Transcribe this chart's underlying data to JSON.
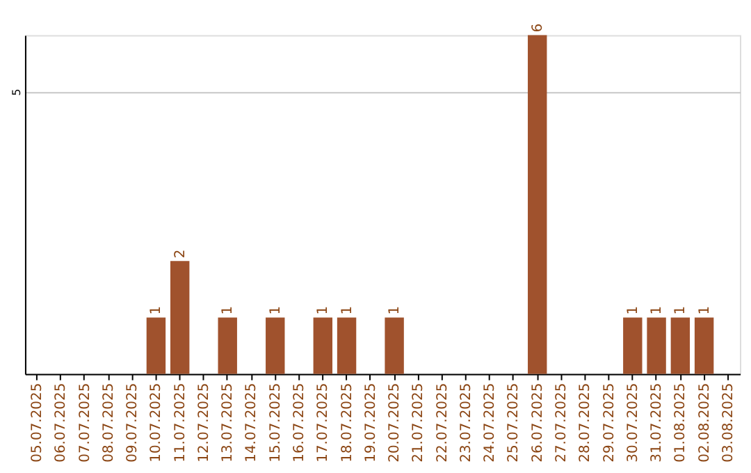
{
  "chart_data": {
    "type": "bar",
    "categories": [
      "05.07.2025",
      "06.07.2025",
      "07.07.2025",
      "08.07.2025",
      "09.07.2025",
      "10.07.2025",
      "11.07.2025",
      "12.07.2025",
      "13.07.2025",
      "14.07.2025",
      "15.07.2025",
      "16.07.2025",
      "17.07.2025",
      "18.07.2025",
      "19.07.2025",
      "20.07.2025",
      "21.07.2025",
      "22.07.2025",
      "23.07.2025",
      "24.07.2025",
      "25.07.2025",
      "26.07.2025",
      "27.07.2025",
      "28.07.2025",
      "29.07.2025",
      "30.07.2025",
      "31.07.2025",
      "01.08.2025",
      "02.08.2025",
      "03.08.2025"
    ],
    "values": [
      0,
      0,
      0,
      0,
      0,
      1,
      2,
      0,
      1,
      0,
      1,
      0,
      1,
      1,
      0,
      1,
      0,
      0,
      0,
      0,
      0,
      6,
      0,
      0,
      0,
      1,
      1,
      1,
      1,
      0
    ],
    "value_labels": [
      null,
      null,
      null,
      null,
      null,
      "1",
      "2",
      null,
      "1",
      null,
      "1",
      null,
      "1",
      "1",
      null,
      "1",
      null,
      null,
      null,
      null,
      null,
      "6",
      null,
      null,
      null,
      "1",
      "1",
      "1",
      "1",
      null
    ],
    "color": "#a0522d",
    "ylim": [
      0,
      6
    ],
    "yticks": [
      5
    ],
    "grid": "y"
  }
}
